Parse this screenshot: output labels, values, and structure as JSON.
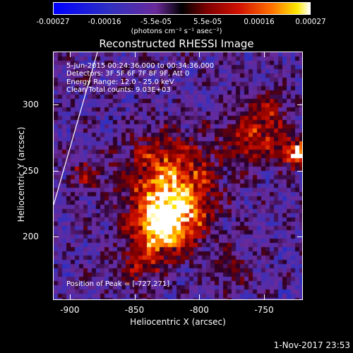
{
  "colorbar": {
    "ticks": [
      "-0.00027",
      "-0.00016",
      "-5.5e-05",
      "5.5e-05",
      "0.00016",
      "0.00027"
    ],
    "unit_label": "(photons cm⁻² s⁻¹ asec⁻²)"
  },
  "plot": {
    "title": "Reconstructed RHESSI Image",
    "info": {
      "time_range": "5-Jun-2015 00:24:36.000 to 00:34:36.000",
      "detectors": "Detectors: 3F 5F 6F 7F 8F 9F, Att 0",
      "energy": "Energy Range: 12.0 - 25.0 keV",
      "method": "Clean     Total counts: 9.03E+03",
      "peak": "Position of Peak = [-727,271]"
    },
    "xlabel": "Heliocentric X (arcsec)",
    "ylabel": "Heliocentric Y (arcsec)",
    "xticks": [
      "-900",
      "-850",
      "-800",
      "-750"
    ],
    "yticks": [
      "300",
      "250",
      "200"
    ]
  },
  "chart_data": {
    "type": "heatmap",
    "title": "Reconstructed RHESSI Image",
    "xlabel": "Heliocentric X (arcsec)",
    "ylabel": "Heliocentric Y (arcsec)",
    "xlim": [
      -913,
      -720
    ],
    "ylim": [
      152,
      340
    ],
    "value_range": [
      -0.00027,
      0.00027
    ],
    "peak": [
      -727,
      271
    ]
  },
  "footer": {
    "timestamp": "1-Nov-2017 23:53"
  }
}
